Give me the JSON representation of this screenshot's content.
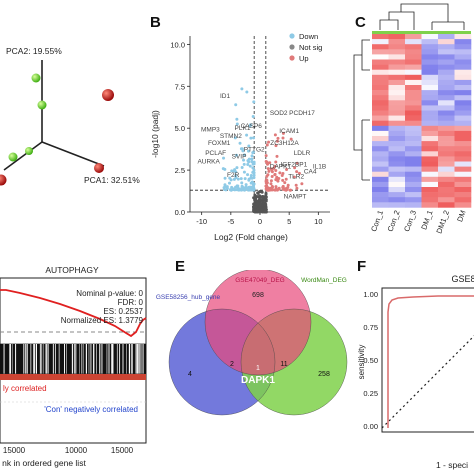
{
  "panels": {
    "B": "B",
    "C": "C",
    "E": "E",
    "F": "F"
  },
  "pca": {
    "pc2": "PCA2: 19.55%",
    "pc1": "PCA1: 32.51%"
  },
  "volcano": {
    "ylabel": "-log10 (padj)",
    "xlabel": "Log2 (Fold change)",
    "yticks": [
      "0.0",
      "2.5",
      "5.0",
      "7.5",
      "10.0"
    ],
    "xticks": [
      "-10",
      "-5",
      "0",
      "5",
      "10"
    ],
    "legend": [
      {
        "label": "Down",
        "color": "#8ecae6"
      },
      {
        "label": "Not sig",
        "color": "#888888"
      },
      {
        "label": "Up",
        "color": "#e07a7a"
      }
    ],
    "genes_left": [
      "ID1",
      "MMP3",
      "STMN2",
      "FOXM1",
      "PCLAF",
      "AURKA",
      "F2R",
      "CASP6",
      "PLK1",
      "SVIP",
      "PTTG2"
    ],
    "genes_right": [
      "SOD2",
      "PCDH17",
      "ICAM1",
      "ZC3H12A",
      "LDLR",
      "IGF2BP1",
      "IL1B",
      "TLR2",
      "DAPK1",
      "NAMPT",
      "CA4"
    ]
  },
  "heatmap": {
    "columns": [
      "Con_1",
      "Con_2",
      "Con_3",
      "DM_1",
      "DM1_2",
      "DM"
    ]
  },
  "gsea": {
    "title": "AUTOPHAGY",
    "stats": [
      "Nominal p-value: 0",
      "FDR: 0",
      "ES: 0.2537",
      "Normalized ES: 1.3779"
    ],
    "pos_label": "ly correlated",
    "neg_label": "'Con' negatively correlated",
    "xticks": [
      "15000",
      "10000",
      "15000"
    ],
    "xlabel": "nk in ordered gene list"
  },
  "venn": {
    "set_a": "GSE58256_hub_gene",
    "set_b": "GSE47049_DEG",
    "set_c": "WordMan_DEG",
    "n_b_only": "698",
    "n_a_only": "4",
    "n_ab": "2",
    "n_bc": "11",
    "n_c_only": "258",
    "n_abc": "1",
    "center_gene": "DAPK1",
    "colors": {
      "a": "#5b62d6",
      "b": "#e8487a",
      "c": "#7fd14a"
    }
  },
  "roc": {
    "title": "GSE86",
    "ylabel": "sensitivity",
    "xlabel": "1 - speci",
    "yticks": [
      "1.00",
      "0.75",
      "0.50",
      "0.25",
      "0.00"
    ],
    "curve_color": "#d96a6a"
  }
}
